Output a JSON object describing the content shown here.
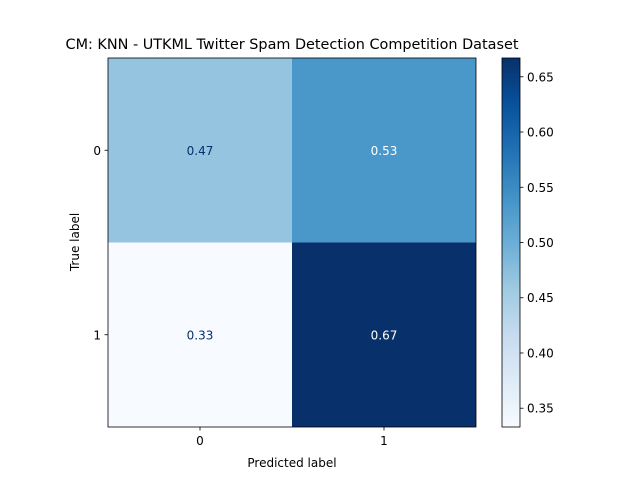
{
  "chart_data": {
    "type": "heatmap",
    "title": "CM: KNN - UTKML Twitter Spam Detection Competition Dataset",
    "xlabel": "Predicted label",
    "ylabel": "True label",
    "x_categories": [
      "0",
      "1"
    ],
    "y_categories": [
      "0",
      "1"
    ],
    "values": [
      [
        0.47,
        0.53
      ],
      [
        0.33,
        0.67
      ]
    ],
    "value_labels": [
      [
        "0.47",
        "0.53"
      ],
      [
        "0.33",
        "0.67"
      ]
    ],
    "colormap": "Blues",
    "colorbar": {
      "vmin": 0.333,
      "vmax": 0.667,
      "ticks": [
        0.35,
        0.4,
        0.45,
        0.5,
        0.55,
        0.6,
        0.65
      ],
      "tick_labels": [
        "0.35",
        "0.40",
        "0.45",
        "0.50",
        "0.55",
        "0.60",
        "0.65"
      ]
    },
    "cell_colors": [
      [
        "#94c4df",
        "#4a98c9"
      ],
      [
        "#f7fbff",
        "#08306b"
      ]
    ]
  }
}
